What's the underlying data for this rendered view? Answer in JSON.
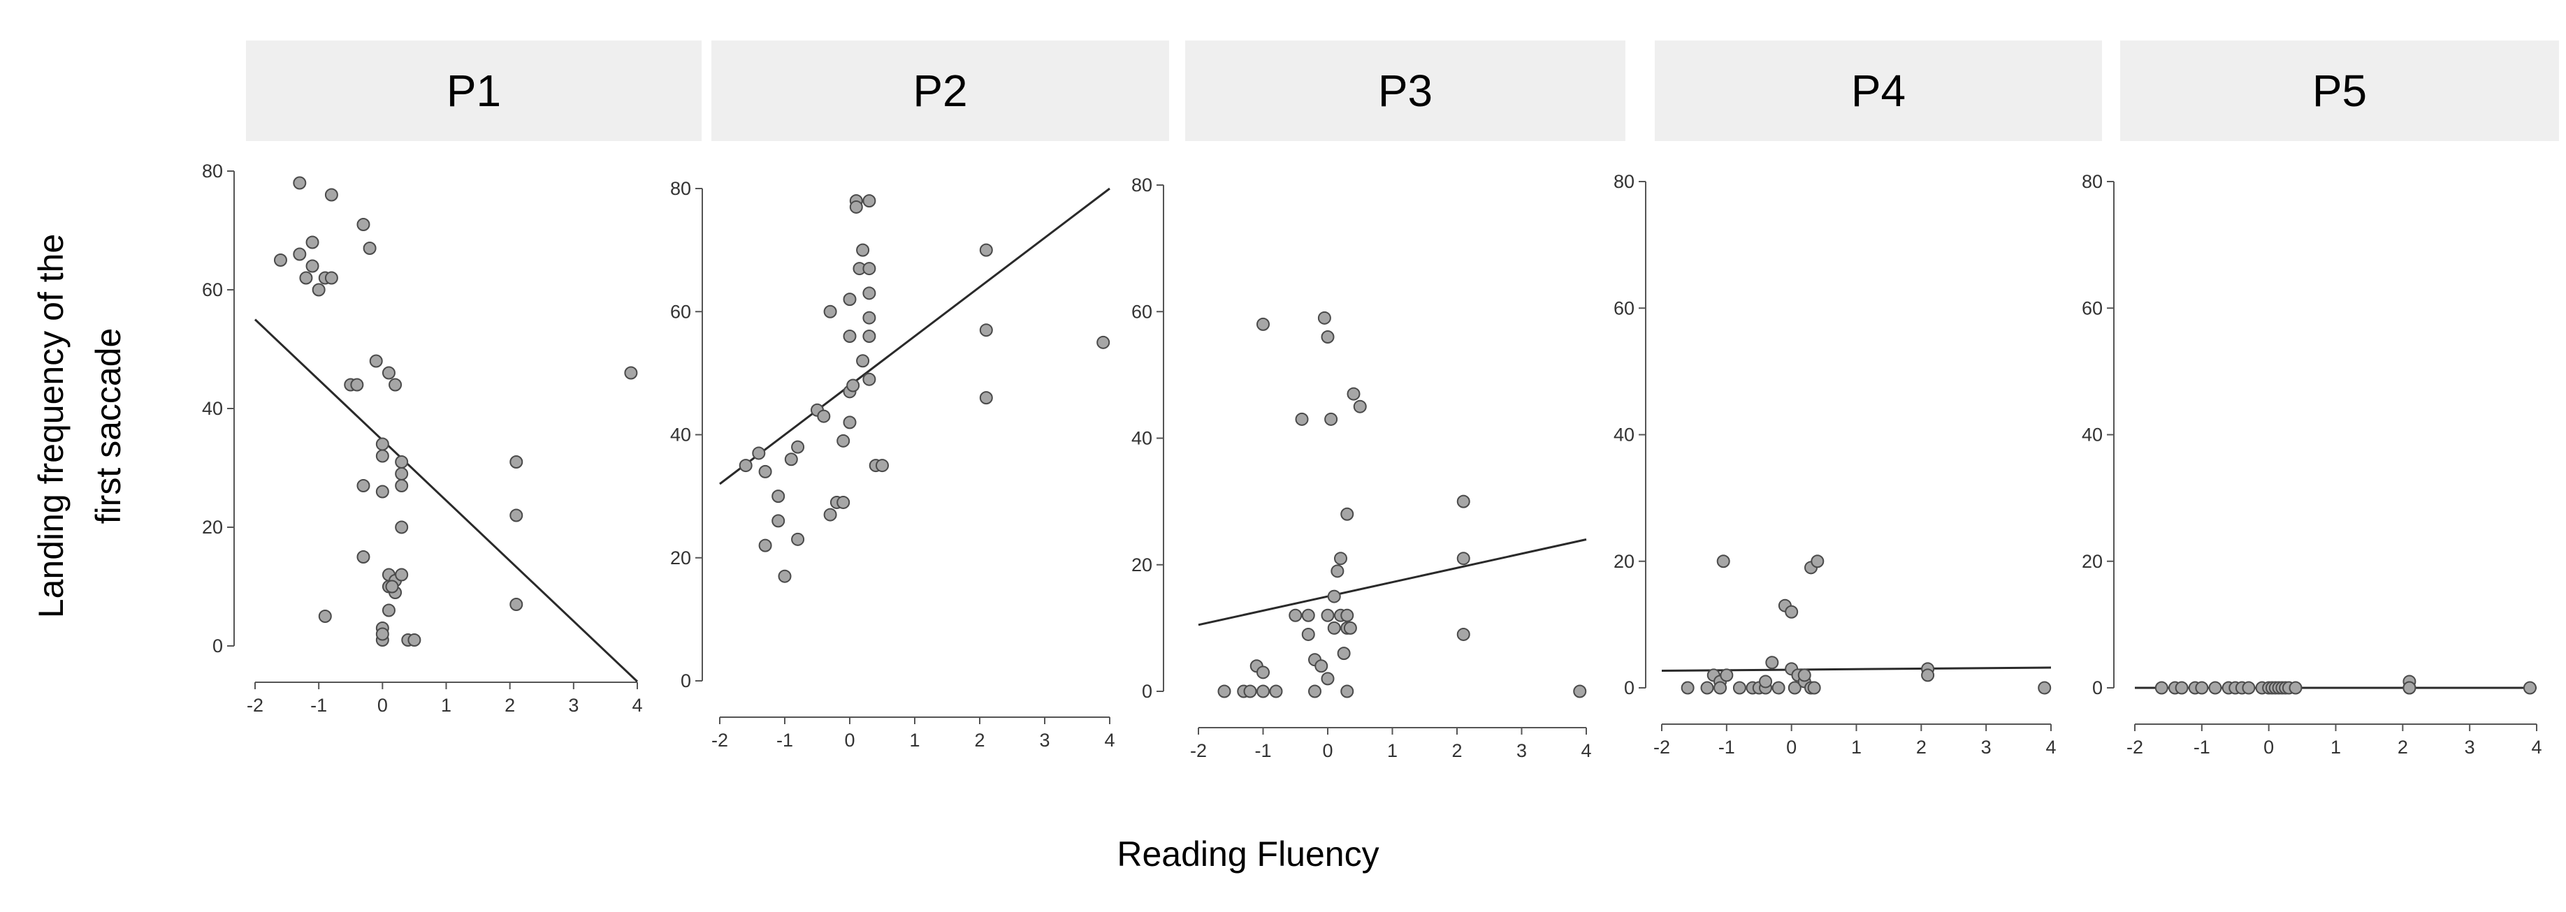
{
  "figure": {
    "ylabel_line1": "Landing frequency of the",
    "ylabel_line2": "first saccade",
    "xlabel": "Reading Fluency"
  },
  "colors": {
    "strip_bg": "#efefef",
    "point_fill": "#a6a6a6",
    "point_stroke": "#4a4a4a",
    "line": "#2a2a2a",
    "axis": "#555555"
  },
  "chart_data": [
    {
      "type": "scatter",
      "title": "P1",
      "xlabel": "Reading Fluency",
      "ylabel": "Landing frequency of the first saccade",
      "xlim": [
        -2,
        4
      ],
      "ylim": [
        0,
        80
      ],
      "xticks": [
        -2,
        -1,
        0,
        1,
        2,
        3,
        4
      ],
      "yticks": [
        0,
        20,
        40,
        60,
        80
      ],
      "grid": false,
      "x": [
        -1.6,
        -1.3,
        -1.3,
        -1.2,
        -1.1,
        -1.1,
        -1.0,
        -0.9,
        -0.8,
        -0.8,
        -0.9,
        -0.5,
        -0.4,
        -0.3,
        -0.3,
        -0.3,
        -0.2,
        -0.1,
        0.0,
        0.0,
        0.1,
        0.2,
        0.3,
        0.0,
        0.0,
        0.1,
        0.2,
        0.3,
        0.3,
        0.3,
        0.1,
        0.2,
        0.3,
        0.1,
        0.15,
        0.0,
        0.0,
        0.4,
        0.5,
        2.1,
        2.1,
        2.1,
        3.9
      ],
      "y": [
        65,
        78,
        66,
        62,
        64,
        68,
        60,
        62,
        62,
        76,
        5,
        44,
        44,
        15,
        27,
        71,
        67,
        48,
        34,
        32,
        46,
        44,
        31,
        26,
        3,
        12,
        11,
        20,
        27,
        29,
        10,
        9,
        12,
        6,
        10,
        1,
        2,
        1,
        1,
        31,
        22,
        7,
        46
      ],
      "fit_line": {
        "x": [
          -2,
          4
        ],
        "y": [
          55,
          -6
        ]
      }
    },
    {
      "type": "scatter",
      "title": "P2",
      "xlabel": "Reading Fluency",
      "ylabel": "Landing frequency of the first saccade",
      "xlim": [
        -2,
        4
      ],
      "ylim": [
        0,
        80
      ],
      "xticks": [
        -2,
        -1,
        0,
        1,
        2,
        3,
        4
      ],
      "yticks": [
        0,
        20,
        40,
        60,
        80
      ],
      "grid": false,
      "x": [
        -1.6,
        -1.4,
        -1.3,
        -1.3,
        -1.1,
        -1.1,
        -1.0,
        -0.9,
        -0.8,
        -0.8,
        -0.5,
        -0.4,
        -0.3,
        -0.3,
        -0.2,
        -0.1,
        -0.1,
        0.0,
        0.0,
        0.0,
        0.0,
        0.05,
        0.1,
        0.1,
        0.15,
        0.2,
        0.2,
        0.3,
        0.3,
        0.3,
        0.3,
        0.3,
        0.3,
        0.4,
        0.5,
        2.1,
        2.1,
        2.1,
        3.9
      ],
      "y": [
        35,
        37,
        22,
        34,
        30,
        26,
        17,
        36,
        38,
        23,
        44,
        43,
        60,
        27,
        29,
        29,
        39,
        42,
        47,
        56,
        62,
        48,
        78,
        77,
        67,
        70,
        52,
        67,
        78,
        63,
        59,
        56,
        49,
        35,
        35,
        70,
        57,
        46,
        55
      ],
      "fit_line": {
        "x": [
          -2,
          4
        ],
        "y": [
          32,
          80
        ]
      }
    },
    {
      "type": "scatter",
      "title": "P3",
      "xlabel": "Reading Fluency",
      "ylabel": "Landing frequency of the first saccade",
      "xlim": [
        -2,
        4
      ],
      "ylim": [
        0,
        80
      ],
      "xticks": [
        -2,
        -1,
        0,
        1,
        2,
        3,
        4
      ],
      "yticks": [
        0,
        20,
        40,
        60,
        80
      ],
      "grid": false,
      "x": [
        -1.6,
        -1.3,
        -1.2,
        -1.1,
        -1.0,
        -1.0,
        -1.0,
        -0.8,
        -0.5,
        -0.4,
        -0.3,
        -0.3,
        -0.2,
        -0.2,
        -0.1,
        -0.05,
        0.0,
        0.0,
        0.0,
        0.05,
        0.1,
        0.1,
        0.15,
        0.2,
        0.2,
        0.25,
        0.3,
        0.3,
        0.3,
        0.35,
        0.4,
        0.5,
        0.3,
        2.1,
        2.1,
        2.1,
        3.9
      ],
      "y": [
        0,
        0,
        0,
        4,
        3,
        58,
        0,
        0,
        12,
        43,
        12,
        9,
        5,
        0,
        4,
        59,
        56,
        2,
        12,
        43,
        15,
        10,
        19,
        21,
        12,
        6,
        28,
        12,
        10,
        10,
        47,
        45,
        0,
        30,
        21,
        9,
        0
      ],
      "fit_line": {
        "x": [
          -2,
          4
        ],
        "y": [
          10.5,
          24
        ]
      }
    },
    {
      "type": "scatter",
      "title": "P4",
      "xlabel": "Reading Fluency",
      "ylabel": "Landing frequency of the first saccade",
      "xlim": [
        -2,
        4
      ],
      "ylim": [
        0,
        80
      ],
      "xticks": [
        -2,
        -1,
        0,
        1,
        2,
        3,
        4
      ],
      "yticks": [
        0,
        20,
        40,
        60,
        80
      ],
      "grid": false,
      "x": [
        -1.6,
        -1.3,
        -1.2,
        -1.1,
        -1.1,
        -1.05,
        -1.0,
        -0.8,
        -0.6,
        -0.5,
        -0.4,
        -0.4,
        -0.3,
        -0.2,
        -0.1,
        0.0,
        0.0,
        0.05,
        0.1,
        0.2,
        0.2,
        0.3,
        0.3,
        0.35,
        0.4,
        2.1,
        2.1,
        3.9
      ],
      "y": [
        0,
        0,
        2,
        1,
        0,
        20,
        2,
        0,
        0,
        0,
        0,
        1,
        4,
        0,
        13,
        12,
        3,
        0,
        2,
        1,
        2,
        0,
        19,
        0,
        20,
        3,
        2,
        0
      ],
      "fit_line": {
        "x": [
          -2,
          4
        ],
        "y": [
          2.7,
          3.2
        ]
      }
    },
    {
      "type": "scatter",
      "title": "P5",
      "xlabel": "Reading Fluency",
      "ylabel": "Landing frequency of the first saccade",
      "xlim": [
        -2,
        4
      ],
      "ylim": [
        0,
        80
      ],
      "xticks": [
        -2,
        -1,
        0,
        1,
        2,
        3,
        4
      ],
      "yticks": [
        0,
        20,
        40,
        60,
        80
      ],
      "grid": false,
      "x": [
        -1.6,
        -1.4,
        -1.3,
        -1.1,
        -1.0,
        -0.8,
        -0.6,
        -0.5,
        -0.4,
        -0.3,
        -0.1,
        0.0,
        0.05,
        0.1,
        0.15,
        0.2,
        0.25,
        0.3,
        0.4,
        2.1,
        2.1,
        2.1,
        3.9
      ],
      "y": [
        0,
        0,
        0,
        0,
        0,
        0,
        0,
        0,
        0,
        0,
        0,
        0,
        0,
        0,
        0,
        0,
        0,
        0,
        0,
        1,
        0,
        0,
        0
      ],
      "fit_line": {
        "x": [
          -2,
          4
        ],
        "y": [
          0,
          0
        ]
      }
    }
  ]
}
